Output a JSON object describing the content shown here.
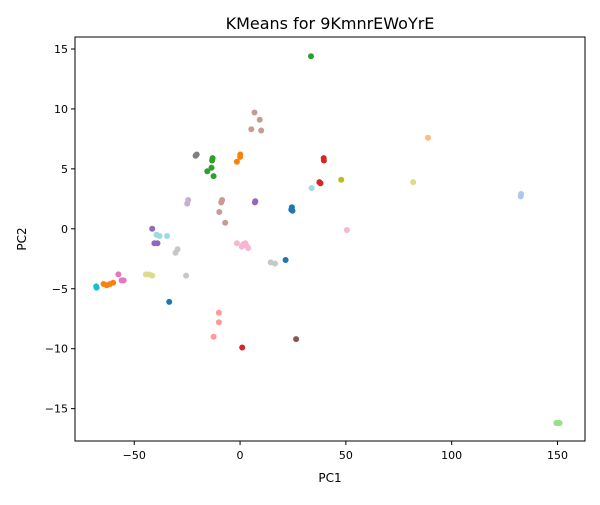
{
  "chart_data": {
    "type": "scatter",
    "title": "KMeans for 9KmnrEWoYrE",
    "xlabel": "PC1",
    "ylabel": "PC2",
    "xlim": [
      -78,
      163
    ],
    "ylim": [
      -17.7,
      16
    ],
    "xticks": [
      -50,
      0,
      50,
      100,
      150
    ],
    "xtick_labels": [
      "−50",
      "0",
      "50",
      "100",
      "150"
    ],
    "yticks": [
      -15,
      -10,
      -5,
      0,
      5,
      10,
      15
    ],
    "ytick_labels": [
      "−15",
      "−10",
      "−5",
      "0",
      "5",
      "10",
      "15"
    ],
    "grid": false,
    "legend": "none",
    "points": [
      {
        "x": 33.5,
        "y": 14.4,
        "color": "#2ca02c"
      },
      {
        "x": 6.8,
        "y": 9.7,
        "color": "#c49c94"
      },
      {
        "x": 9.3,
        "y": 9.1,
        "color": "#c49c94"
      },
      {
        "x": 5.3,
        "y": 8.3,
        "color": "#c49c94"
      },
      {
        "x": 10.0,
        "y": 8.2,
        "color": "#c49c94"
      },
      {
        "x": 88.8,
        "y": 7.6,
        "color": "#ffbb78"
      },
      {
        "x": -20.5,
        "y": 6.2,
        "color": "#7f7f7f"
      },
      {
        "x": -21.0,
        "y": 6.1,
        "color": "#7f7f7f"
      },
      {
        "x": 0.1,
        "y": 6.2,
        "color": "#ff7f0e"
      },
      {
        "x": 0.0,
        "y": 6.0,
        "color": "#ff7f0e"
      },
      {
        "x": -1.5,
        "y": 5.6,
        "color": "#ff7f0e"
      },
      {
        "x": 39.5,
        "y": 5.9,
        "color": "#d62728"
      },
      {
        "x": 39.6,
        "y": 5.7,
        "color": "#d62728"
      },
      {
        "x": -13.0,
        "y": 5.9,
        "color": "#2ca02c"
      },
      {
        "x": -13.2,
        "y": 5.7,
        "color": "#2ca02c"
      },
      {
        "x": -13.5,
        "y": 5.1,
        "color": "#2ca02c"
      },
      {
        "x": -15.5,
        "y": 4.8,
        "color": "#2ca02c"
      },
      {
        "x": -12.5,
        "y": 4.4,
        "color": "#2ca02c"
      },
      {
        "x": 47.8,
        "y": 4.1,
        "color": "#bcbd22"
      },
      {
        "x": 81.8,
        "y": 3.9,
        "color": "#dbdb8d"
      },
      {
        "x": 37.5,
        "y": 3.9,
        "color": "#d62728"
      },
      {
        "x": 38.0,
        "y": 3.8,
        "color": "#d62728"
      },
      {
        "x": 33.8,
        "y": 3.4,
        "color": "#9edae5"
      },
      {
        "x": 132.8,
        "y": 2.9,
        "color": "#aec7e8"
      },
      {
        "x": 132.6,
        "y": 2.7,
        "color": "#aec7e8"
      },
      {
        "x": -8.5,
        "y": 2.4,
        "color": "#c49c94"
      },
      {
        "x": -8.9,
        "y": 2.2,
        "color": "#c49c94"
      },
      {
        "x": 7.2,
        "y": 2.3,
        "color": "#9467bd"
      },
      {
        "x": 7.0,
        "y": 2.2,
        "color": "#9467bd"
      },
      {
        "x": -24.5,
        "y": 2.4,
        "color": "#c5b0d5"
      },
      {
        "x": -25.0,
        "y": 2.1,
        "color": "#c5b0d5"
      },
      {
        "x": 24.5,
        "y": 1.8,
        "color": "#1f77b4"
      },
      {
        "x": 24.2,
        "y": 1.6,
        "color": "#1f77b4"
      },
      {
        "x": 24.8,
        "y": 1.5,
        "color": "#1f77b4"
      },
      {
        "x": -9.8,
        "y": 1.4,
        "color": "#c49c94"
      },
      {
        "x": -7.0,
        "y": 0.5,
        "color": "#c49c94"
      },
      {
        "x": 50.5,
        "y": -0.1,
        "color": "#f7b6d2"
      },
      {
        "x": -41.5,
        "y": 0.0,
        "color": "#9467bd"
      },
      {
        "x": -39.5,
        "y": -0.5,
        "color": "#9edae5"
      },
      {
        "x": -38.0,
        "y": -0.6,
        "color": "#9edae5"
      },
      {
        "x": -34.5,
        "y": -0.6,
        "color": "#9edae5"
      },
      {
        "x": -40.5,
        "y": -1.2,
        "color": "#9467bd"
      },
      {
        "x": -39.0,
        "y": -1.2,
        "color": "#9467bd"
      },
      {
        "x": -1.5,
        "y": -1.2,
        "color": "#f7b6d2"
      },
      {
        "x": 1.5,
        "y": -1.3,
        "color": "#f7b6d2"
      },
      {
        "x": 2.5,
        "y": -1.2,
        "color": "#f7b6d2"
      },
      {
        "x": 0.8,
        "y": -1.5,
        "color": "#f7b6d2"
      },
      {
        "x": 3.8,
        "y": -1.6,
        "color": "#f7b6d2"
      },
      {
        "x": 3.0,
        "y": -1.4,
        "color": "#f7b6d2"
      },
      {
        "x": -29.5,
        "y": -1.7,
        "color": "#c7c7c7"
      },
      {
        "x": -30.5,
        "y": -2.0,
        "color": "#c7c7c7"
      },
      {
        "x": 21.5,
        "y": -2.6,
        "color": "#1f77b4"
      },
      {
        "x": 14.5,
        "y": -2.8,
        "color": "#c7c7c7"
      },
      {
        "x": 16.5,
        "y": -2.9,
        "color": "#c7c7c7"
      },
      {
        "x": -57.5,
        "y": -3.8,
        "color": "#e377c2"
      },
      {
        "x": -44.5,
        "y": -3.8,
        "color": "#dbdb8d"
      },
      {
        "x": -43.0,
        "y": -3.8,
        "color": "#dbdb8d"
      },
      {
        "x": -41.5,
        "y": -3.9,
        "color": "#dbdb8d"
      },
      {
        "x": -25.5,
        "y": -3.9,
        "color": "#c7c7c7"
      },
      {
        "x": -56.0,
        "y": -4.3,
        "color": "#e377c2"
      },
      {
        "x": -55.0,
        "y": -4.3,
        "color": "#e377c2"
      },
      {
        "x": -64.5,
        "y": -4.6,
        "color": "#ff7f0e"
      },
      {
        "x": -63.0,
        "y": -4.7,
        "color": "#ff7f0e"
      },
      {
        "x": -61.5,
        "y": -4.6,
        "color": "#ff7f0e"
      },
      {
        "x": -60.0,
        "y": -4.5,
        "color": "#ff7f0e"
      },
      {
        "x": -68.0,
        "y": -4.8,
        "color": "#17becf"
      },
      {
        "x": -67.8,
        "y": -4.9,
        "color": "#17becf"
      },
      {
        "x": -33.5,
        "y": -6.1,
        "color": "#1f77b4"
      },
      {
        "x": -10.0,
        "y": -7.0,
        "color": "#ff9896"
      },
      {
        "x": -10.0,
        "y": -7.8,
        "color": "#ff9896"
      },
      {
        "x": -12.5,
        "y": -9.0,
        "color": "#ff9896"
      },
      {
        "x": 26.5,
        "y": -9.2,
        "color": "#8c564b"
      },
      {
        "x": 1.0,
        "y": -9.9,
        "color": "#d62728"
      },
      {
        "x": 149.5,
        "y": -16.2,
        "color": "#98df8a"
      },
      {
        "x": 150.5,
        "y": -16.2,
        "color": "#98df8a"
      },
      {
        "x": 151.0,
        "y": -16.2,
        "color": "#98df8a"
      }
    ]
  }
}
